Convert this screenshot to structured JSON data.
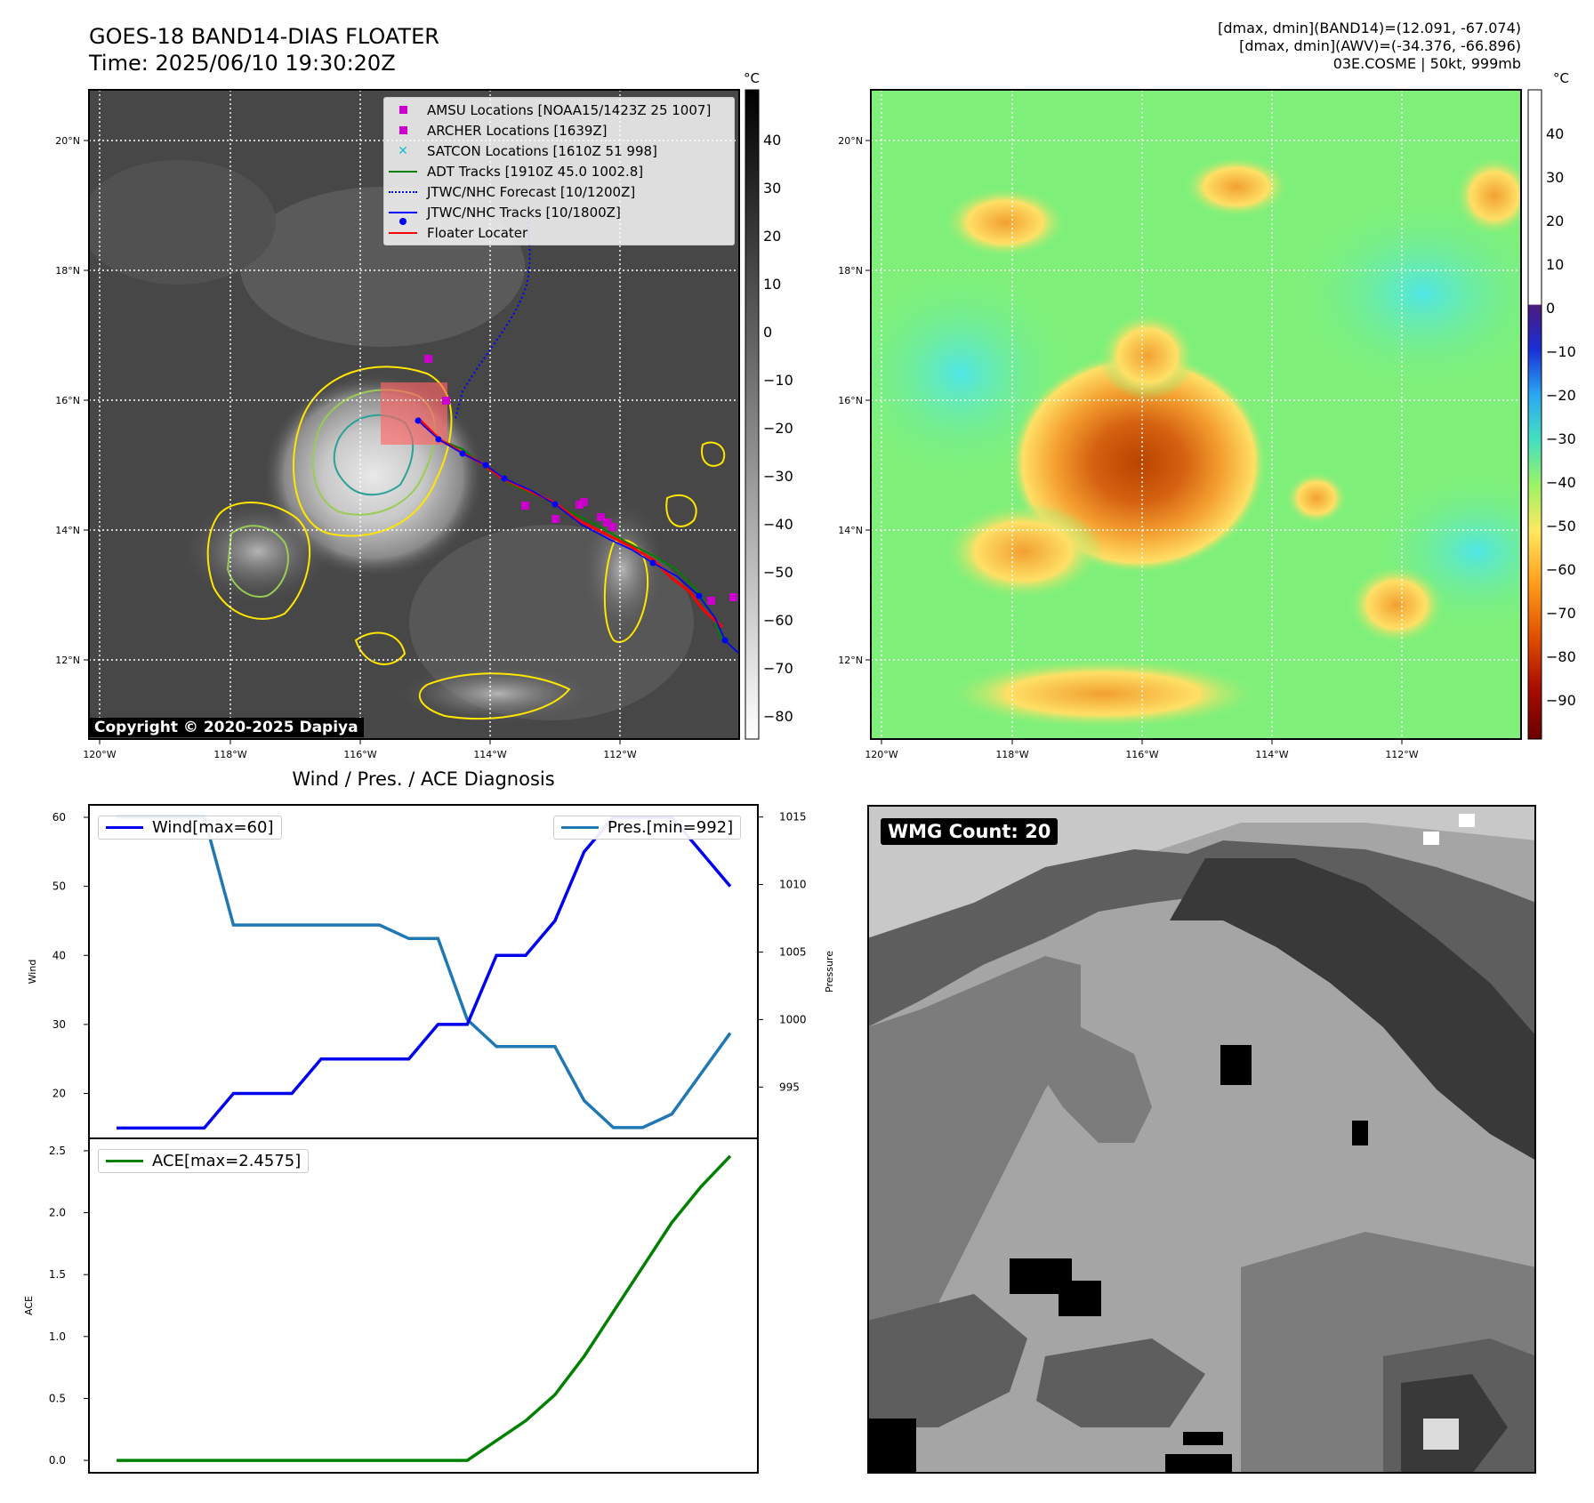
{
  "header": {
    "title_line1": "GOES-18 BAND14-DIAS FLOATER",
    "title_line2": "Time: 2025/06/10 19:30:20Z",
    "right_line1": "[dmax, dmin](BAND14)=(12.091, -67.074)",
    "right_line2": "[dmax, dmin](AWV)=(-34.376, -66.896)",
    "right_line3": "03E.COSME | 50kt, 999mb"
  },
  "ir_map": {
    "lat_labels": [
      "20°N",
      "18°N",
      "16°N",
      "14°N",
      "12°N"
    ],
    "lon_labels": [
      "120°W",
      "118°W",
      "116°W",
      "114°W",
      "112°W"
    ],
    "colorbar_unit": "°C",
    "colorbar_ticks": [
      "40",
      "30",
      "20",
      "10",
      "0",
      "−10",
      "−20",
      "−30",
      "−40",
      "−50",
      "−60",
      "−70",
      "−80"
    ],
    "copyright": "Copyright © 2020-2025 Dapiya",
    "legend": [
      {
        "label": "AMSU Locations [NOAA15/1423Z 25 1007]",
        "icon": "magenta-square",
        "color": "#cc00cc"
      },
      {
        "label": "ARCHER Locations [1639Z]",
        "icon": "magenta-square",
        "color": "#cc00cc"
      },
      {
        "label": "SATCON Locations [1610Z 51 998]",
        "icon": "cyan-x",
        "color": "#17becf"
      },
      {
        "label": "ADT Tracks [1910Z 45.0 1002.8]",
        "icon": "green-line",
        "color": "#008000"
      },
      {
        "label": "JTWC/NHC Forecast [10/1200Z]",
        "icon": "blue-dotted-line",
        "color": "#0000ff"
      },
      {
        "label": "JTWC/NHC Tracks [10/1800Z]",
        "icon": "blue-line-dot",
        "color": "#0000ff"
      },
      {
        "label": "Floater Locater",
        "icon": "red-line",
        "color": "#ff0000"
      }
    ]
  },
  "awv_map": {
    "lat_labels": [
      "20°N",
      "18°N",
      "16°N",
      "14°N",
      "12°N"
    ],
    "lon_labels": [
      "120°W",
      "118°W",
      "116°W",
      "114°W",
      "112°W"
    ],
    "colorbar_unit": "°C",
    "colorbar_ticks": [
      "40",
      "30",
      "20",
      "10",
      "0",
      "−10",
      "−20",
      "−30",
      "−40",
      "−50",
      "−60",
      "−70",
      "−80",
      "−90"
    ]
  },
  "wmg_panel": {
    "label": "WMG Count: 20"
  },
  "chart_data": [
    {
      "type": "line",
      "title": "Wind / Pres. / ACE Diagnosis",
      "x": [
        0,
        1,
        2,
        3,
        4,
        5,
        6,
        7,
        8,
        9,
        10,
        11,
        12,
        13,
        14,
        15,
        16,
        17,
        18,
        19,
        20,
        21
      ],
      "series": [
        {
          "name": "Wind[max=60]",
          "axis": "left",
          "color": "#0000ee",
          "values": [
            15,
            15,
            15,
            15,
            20,
            20,
            20,
            25,
            25,
            25,
            25,
            30,
            30,
            40,
            40,
            45,
            55,
            60,
            60,
            60,
            55,
            50
          ]
        },
        {
          "name": "Pres.[min=992]",
          "axis": "right",
          "color": "#1f77b4",
          "values": [
            1015,
            1015,
            1015,
            1015,
            1007,
            1007,
            1007,
            1007,
            1007,
            1007,
            1006,
            1006,
            1000,
            998,
            998,
            998,
            994,
            992,
            992,
            993,
            996,
            999
          ]
        }
      ],
      "ylabel": "Wind",
      "y2label": "Pressure",
      "ylim": [
        13.5,
        61.8
      ],
      "y2lim": [
        991.2,
        1015.9
      ],
      "yticks": [
        20,
        30,
        40,
        50,
        60
      ],
      "y2ticks": [
        995,
        1000,
        1005,
        1010,
        1015
      ]
    },
    {
      "type": "line",
      "x": [
        0,
        1,
        2,
        3,
        4,
        5,
        6,
        7,
        8,
        9,
        10,
        11,
        12,
        13,
        14,
        15,
        16,
        17,
        18,
        19,
        20,
        21
      ],
      "series": [
        {
          "name": "ACE[max=2.4575]",
          "color": "#008000",
          "values": [
            0,
            0,
            0,
            0,
            0,
            0,
            0,
            0,
            0,
            0,
            0,
            0,
            0,
            0.16,
            0.32,
            0.53,
            0.84,
            1.2,
            1.56,
            1.92,
            2.21,
            2.4575
          ]
        }
      ],
      "ylabel": "ACE",
      "ylim": [
        -0.1,
        2.6
      ],
      "yticks": [
        "0.0",
        "0.5",
        "1.0",
        "1.5",
        "2.0",
        "2.5"
      ]
    }
  ]
}
